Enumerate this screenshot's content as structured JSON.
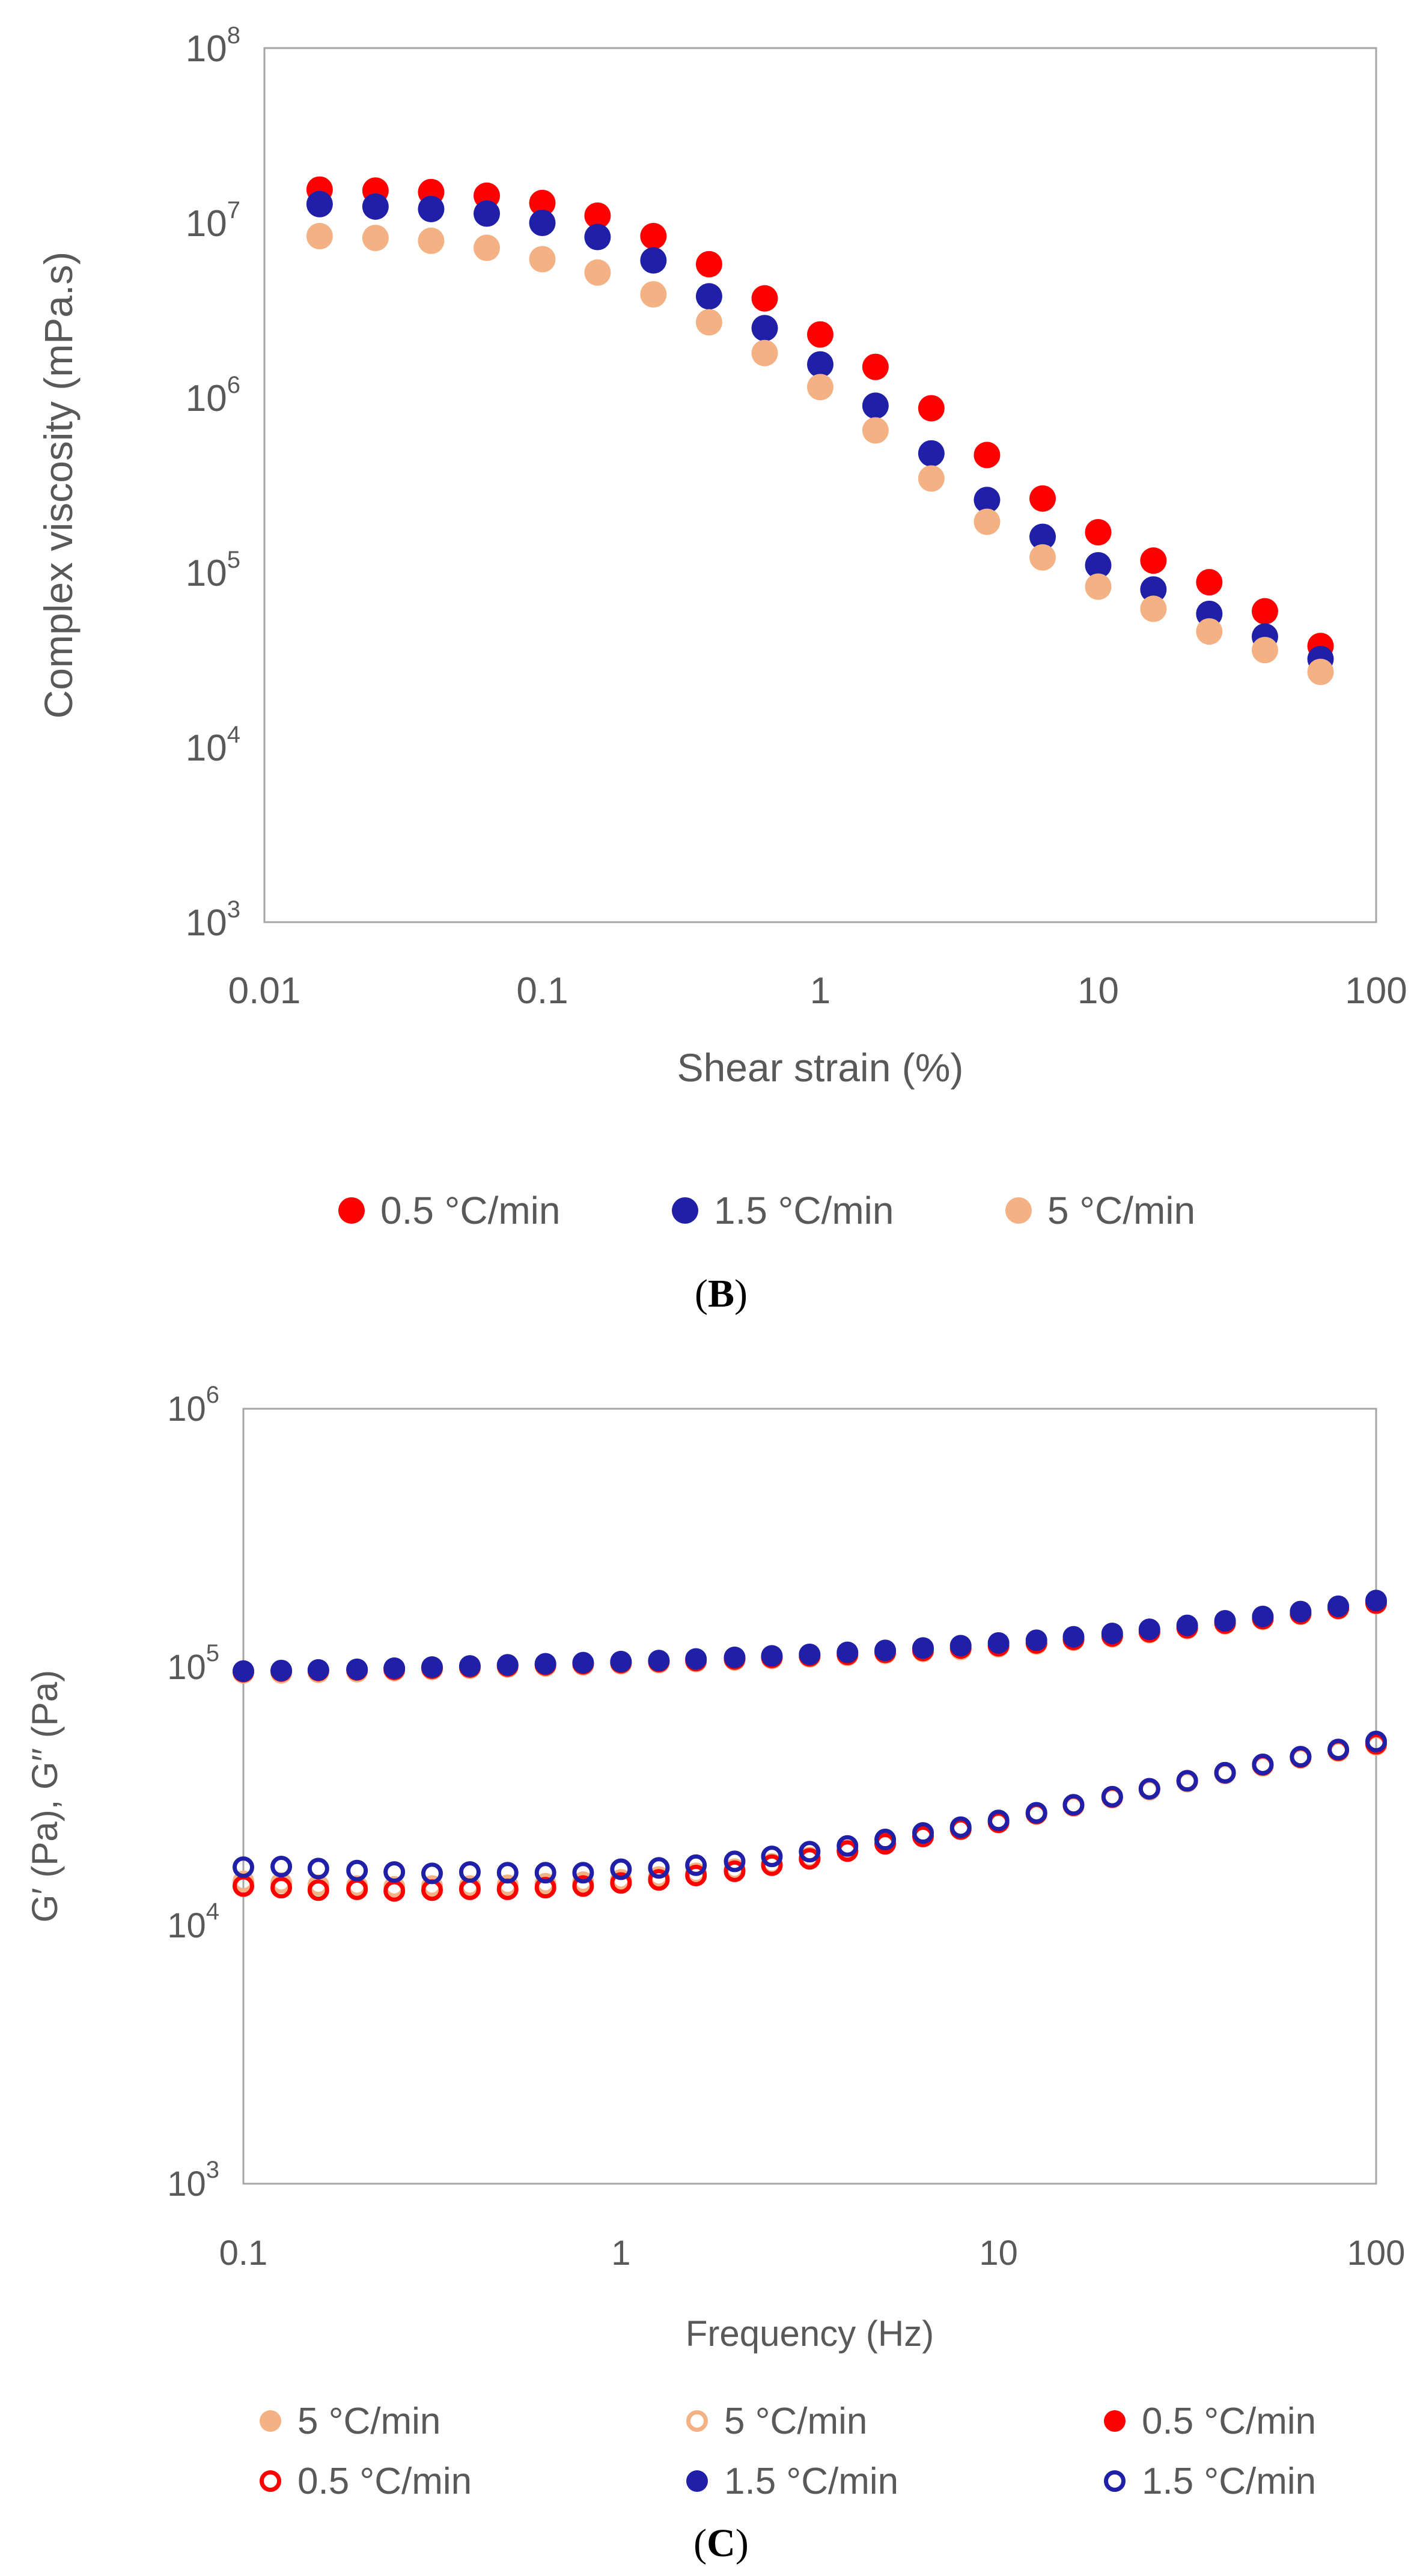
{
  "chart_data": [
    {
      "type": "scatter",
      "panel_label": "B",
      "xlabel": "Shear strain (%)",
      "ylabel": "Complex viscosity (mPa.s)",
      "xscale": "log",
      "yscale": "log",
      "xlim": [
        0.01,
        100
      ],
      "ylim": [
        1000,
        100000000
      ],
      "xticks": [
        {
          "value": 0.01,
          "label": "0.01"
        },
        {
          "value": 0.1,
          "label": "0.1"
        },
        {
          "value": 1,
          "label": "1"
        },
        {
          "value": 10,
          "label": "10"
        },
        {
          "value": 100,
          "label": "100"
        }
      ],
      "yticks": [
        {
          "value": 1000,
          "base": "10",
          "exp": "3"
        },
        {
          "value": 10000,
          "base": "10",
          "exp": "4"
        },
        {
          "value": 100000,
          "base": "10",
          "exp": "5"
        },
        {
          "value": 1000000,
          "base": "10",
          "exp": "6"
        },
        {
          "value": 10000000,
          "base": "10",
          "exp": "7"
        },
        {
          "value": 100000000,
          "base": "10",
          "exp": "8"
        }
      ],
      "grid": false,
      "legend_position": "bottom",
      "x": [
        0.0158,
        0.0251,
        0.0398,
        0.0631,
        0.1,
        0.158,
        0.251,
        0.398,
        0.631,
        1,
        1.58,
        2.51,
        3.98,
        6.31,
        10,
        15.8,
        25.1,
        39.8,
        63.1
      ],
      "series": [
        {
          "name": "0.5 °C/min",
          "color": "#ff0000",
          "filled": true,
          "values": [
            15500000,
            15300000,
            15000000,
            14300000,
            13000000,
            11000000,
            8400000,
            5800000,
            3700000,
            2300000,
            1500000,
            870000,
            470000,
            265000,
            170000,
            117000,
            88000,
            60000,
            38000
          ]
        },
        {
          "name": "1.5 °C/min",
          "color": "#1f1fa8",
          "filled": true,
          "values": [
            12800000,
            12400000,
            12000000,
            11300000,
            10000000,
            8300000,
            6100000,
            3800000,
            2500000,
            1550000,
            900000,
            480000,
            260000,
            160000,
            110000,
            80000,
            58000,
            43000,
            32000
          ]
        },
        {
          "name": "5 °C/min",
          "color": "#f4b183",
          "filled": true,
          "values": [
            8400000,
            8200000,
            7900000,
            7200000,
            6200000,
            5200000,
            3900000,
            2700000,
            1800000,
            1150000,
            650000,
            345000,
            195000,
            122000,
            83000,
            62000,
            46000,
            36000,
            27000
          ]
        }
      ]
    },
    {
      "type": "scatter",
      "panel_label": "C",
      "xlabel": "Frequency (Hz)",
      "ylabel": "G′ (Pa), G′′ (Pa)",
      "xscale": "log",
      "yscale": "log",
      "xlim": [
        0.1,
        100
      ],
      "ylim": [
        1000,
        1000000
      ],
      "xticks": [
        {
          "value": 0.1,
          "label": "0.1"
        },
        {
          "value": 1,
          "label": "1"
        },
        {
          "value": 10,
          "label": "10"
        },
        {
          "value": 100,
          "label": "100"
        }
      ],
      "yticks": [
        {
          "value": 1000,
          "base": "10",
          "exp": "3"
        },
        {
          "value": 10000,
          "base": "10",
          "exp": "4"
        },
        {
          "value": 100000,
          "base": "10",
          "exp": "5"
        },
        {
          "value": 1000000,
          "base": "10",
          "exp": "6"
        }
      ],
      "grid": false,
      "legend_position": "bottom",
      "x": [
        0.1,
        0.126,
        0.158,
        0.2,
        0.251,
        0.316,
        0.398,
        0.501,
        0.631,
        0.794,
        1,
        1.26,
        1.58,
        2,
        2.51,
        3.16,
        3.98,
        5.01,
        6.31,
        7.94,
        10,
        12.6,
        15.8,
        20,
        25.1,
        31.6,
        39.8,
        50.1,
        63.1,
        79.4,
        100
      ],
      "series": [
        {
          "name": "5 °C/min",
          "color": "#f4b183",
          "filled": true,
          "values": [
            95000,
            95000,
            95500,
            96000,
            97000,
            98000,
            99000,
            100000,
            101000,
            102000,
            103000,
            104000,
            105000,
            106500,
            108000,
            109500,
            111000,
            113000,
            115000,
            117000,
            120000,
            123000,
            127000,
            131000,
            136000,
            141000,
            147000,
            153000,
            160000,
            168000,
            176000
          ]
        },
        {
          "name": "5 °C/min",
          "color": "#f4b183",
          "filled": false,
          "values": [
            14800,
            14600,
            14300,
            14200,
            14100,
            14200,
            14200,
            14300,
            14500,
            14700,
            15000,
            15400,
            15900,
            16500,
            17300,
            18300,
            19500,
            20800,
            22200,
            23600,
            25000,
            27000,
            29000,
            31200,
            33500,
            36000,
            38700,
            41500,
            44500,
            47300,
            50000
          ]
        },
        {
          "name": "0.5 °C/min",
          "color": "#ff0000",
          "filled": true,
          "values": [
            96000,
            96500,
            97000,
            97500,
            98000,
            99000,
            100000,
            101000,
            102000,
            103000,
            104000,
            105000,
            106000,
            107500,
            109000,
            110500,
            112000,
            114000,
            116000,
            118500,
            121000,
            124000,
            128000,
            132000,
            137000,
            142000,
            148000,
            154000,
            161000,
            169000,
            177000
          ]
        },
        {
          "name": "0.5 °C/min",
          "color": "#ff0000",
          "filled": false,
          "values": [
            14200,
            14000,
            13700,
            13800,
            13600,
            13700,
            13800,
            13800,
            14000,
            14200,
            14600,
            15000,
            15600,
            16200,
            17100,
            18100,
            19400,
            20700,
            22100,
            23600,
            25100,
            27100,
            29200,
            31400,
            33800,
            36300,
            39000,
            41800,
            44800,
            47700,
            50500
          ]
        },
        {
          "name": "1.5 °C/min",
          "color": "#1f1fa8",
          "filled": true,
          "values": [
            96500,
            97000,
            97500,
            98000,
            99000,
            100000,
            101000,
            102000,
            103000,
            104000,
            105000,
            106000,
            107500,
            109000,
            110500,
            112000,
            114000,
            116000,
            118500,
            121000,
            124000,
            127000,
            131000,
            135000,
            140000,
            145000,
            151000,
            157000,
            164000,
            172000,
            181000
          ]
        },
        {
          "name": "1.5 °C/min",
          "color": "#1f1fa8",
          "filled": false,
          "values": [
            16800,
            16900,
            16600,
            16300,
            16100,
            15900,
            16100,
            16000,
            16000,
            16000,
            16500,
            16700,
            17100,
            17700,
            18500,
            19300,
            20300,
            21500,
            22800,
            24000,
            25500,
            27300,
            29300,
            31500,
            33800,
            36300,
            39000,
            42000,
            45000,
            48000,
            51500
          ]
        }
      ]
    }
  ]
}
